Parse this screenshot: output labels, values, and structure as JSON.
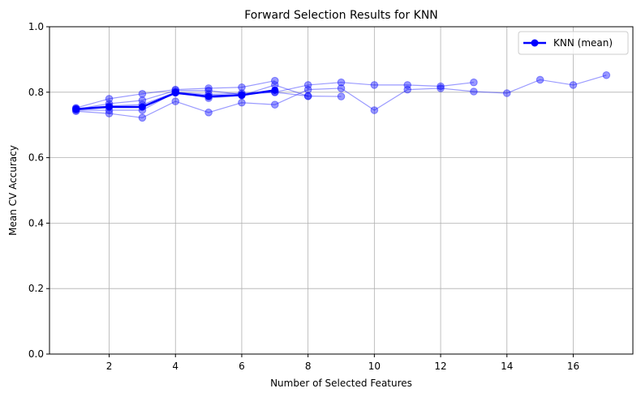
{
  "chart_data": {
    "type": "line",
    "title": "Forward Selection Results for KNN",
    "xlabel": "Number of Selected Features",
    "ylabel": "Mean CV Accuracy",
    "xlim": [
      0.2,
      17.8
    ],
    "ylim": [
      0.0,
      1.0
    ],
    "xticks": [
      2,
      4,
      6,
      8,
      10,
      12,
      14,
      16
    ],
    "yticks": [
      0.0,
      0.2,
      0.4,
      0.6,
      0.8,
      1.0
    ],
    "grid": true,
    "legend_position": "top-right",
    "colors": {
      "series": "#0000ff",
      "grid": "#b0b0b0",
      "axes": "#000000"
    },
    "runs": [
      {
        "x": [
          1,
          2,
          3,
          4,
          5,
          6,
          7
        ],
        "y": [
          0.752,
          0.78,
          0.795,
          0.808,
          0.812,
          0.815,
          0.835
        ]
      },
      {
        "x": [
          1,
          2,
          3,
          4,
          5,
          6,
          7,
          8,
          9,
          10,
          11,
          12,
          13
        ],
        "y": [
          0.748,
          0.765,
          0.775,
          0.805,
          0.805,
          0.793,
          0.8,
          0.822,
          0.83,
          0.822,
          0.822,
          0.818,
          0.83
        ]
      },
      {
        "x": [
          1,
          2,
          3,
          4,
          5,
          6,
          7,
          8,
          9
        ],
        "y": [
          0.745,
          0.745,
          0.745,
          0.8,
          0.782,
          0.79,
          0.822,
          0.788,
          0.787
        ]
      },
      {
        "x": [
          1,
          2,
          3,
          4,
          5,
          6,
          7,
          8,
          9,
          10,
          11,
          12,
          13,
          14,
          15,
          16,
          17
        ],
        "y": [
          0.742,
          0.735,
          0.722,
          0.772,
          0.738,
          0.768,
          0.762,
          0.808,
          0.812,
          0.745,
          0.808,
          0.812,
          0.802,
          0.797,
          0.838,
          0.822,
          0.852
        ]
      },
      {
        "x": [
          1,
          2,
          3,
          4,
          5,
          6,
          7,
          8
        ],
        "y": [
          0.75,
          0.758,
          0.762,
          0.8,
          0.793,
          0.797,
          0.8,
          0.788
        ]
      }
    ],
    "series": [
      {
        "name": "KNN (mean)",
        "x": [
          1,
          2,
          3,
          4,
          5,
          6,
          7
        ],
        "y": [
          0.748,
          0.755,
          0.755,
          0.798,
          0.787,
          0.791,
          0.806
        ]
      }
    ]
  }
}
